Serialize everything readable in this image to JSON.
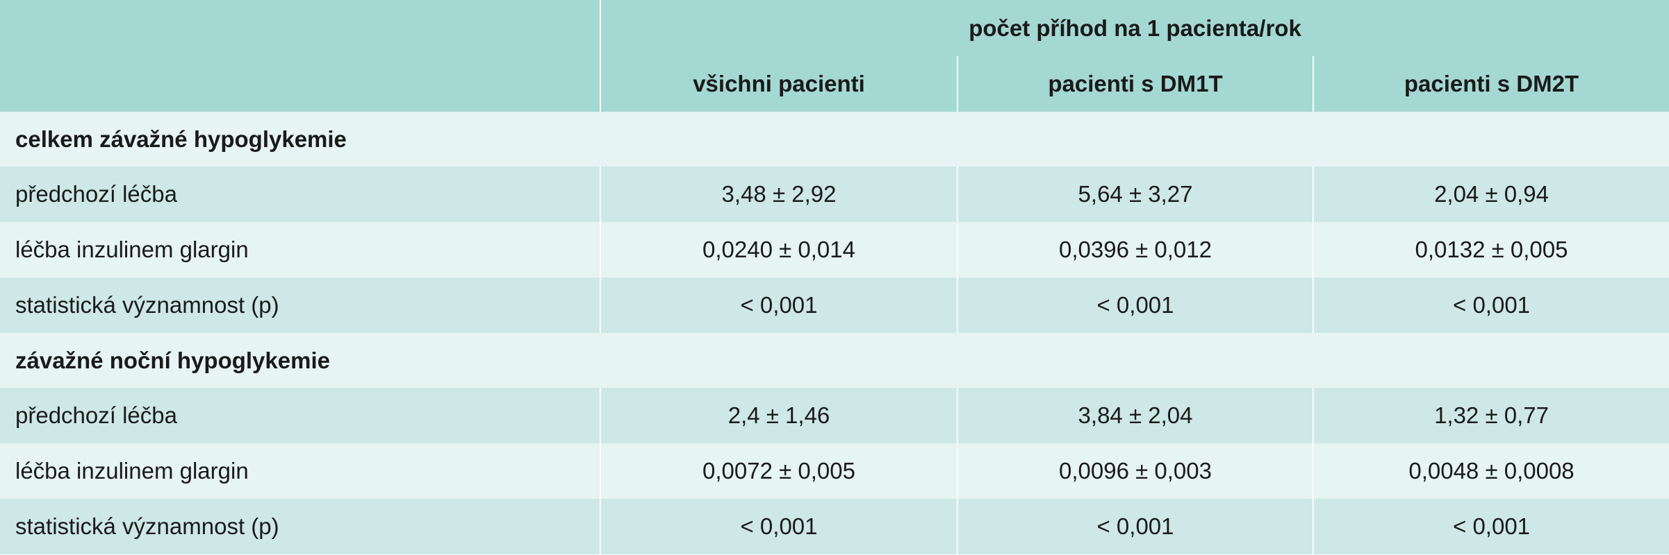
{
  "header": {
    "group_label": "počet příhod na 1 pacienta/rok",
    "columns": [
      "všichni pacienti",
      "pacienti s DM1T",
      "pacienti s DM2T"
    ]
  },
  "sections": [
    {
      "title": "celkem závažné hypoglykemie",
      "rows": [
        {
          "label": "předchozí léčba",
          "values": [
            "3,48 ± 2,92",
            "5,64 ± 3,27",
            "2,04 ± 0,94"
          ]
        },
        {
          "label": "léčba inzulinem glargin",
          "values": [
            "0,0240 ± 0,014",
            "0,0396 ± 0,012",
            "0,0132 ± 0,005"
          ]
        },
        {
          "label": "statistická významnost (p)",
          "values": [
            "< 0,001",
            "< 0,001",
            "< 0,001"
          ]
        }
      ]
    },
    {
      "title": "závažné noční hypoglykemie",
      "rows": [
        {
          "label": "předchozí léčba",
          "values": [
            "2,4 ± 1,46",
            "3,84 ± 2,04",
            "1,32 ± 0,77"
          ]
        },
        {
          "label": "léčba inzulinem glargin",
          "values": [
            "0,0072 ± 0,005",
            "0,0096 ± 0,003",
            "0,0048 ± 0,0008"
          ]
        },
        {
          "label": "statistická významnost (p)",
          "values": [
            "< 0,001",
            "< 0,001",
            "< 0,001"
          ]
        }
      ]
    }
  ],
  "colors": {
    "header_bg": "#a4d8d3",
    "row_light": "#e6f4f3",
    "row_dark": "#cde8e6"
  }
}
